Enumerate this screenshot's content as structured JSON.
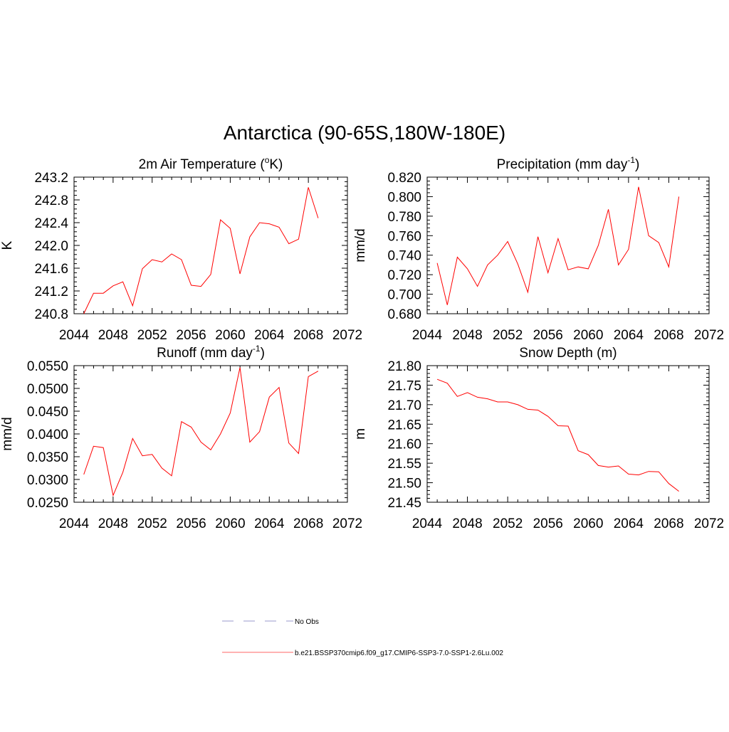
{
  "figure": {
    "title": "Antarctica (90-65S,180W-180E)"
  },
  "legend": {
    "entries": [
      {
        "label": "No Obs",
        "color": "#9999cc",
        "style": "dashed"
      },
      {
        "label": "b.e21.BSSP370cmip6.f09_g17.CMIP6-SSP3-7.0-SSP1-2.6Lu.002",
        "color": "#ff6666",
        "style": "solid"
      }
    ]
  },
  "chart_data": [
    {
      "id": "temp",
      "type": "line",
      "title": "2m Air Temperature (",
      "title_sup": "o",
      "title_after": "K)",
      "ylabel": "K",
      "xlim": [
        2044,
        2072
      ],
      "ylim": [
        240.8,
        243.2
      ],
      "xticks": [
        "2044",
        "2048",
        "2052",
        "2056",
        "2060",
        "2064",
        "2068",
        "2072"
      ],
      "yticks": [
        "240.8",
        "241.2",
        "241.6",
        "242.0",
        "242.4",
        "242.8",
        "243.2"
      ],
      "series": [
        {
          "color": "#ff0000",
          "x": [
            2045,
            2046,
            2047,
            2048,
            2049,
            2050,
            2051,
            2052,
            2053,
            2054,
            2055,
            2056,
            2057,
            2058,
            2059,
            2060,
            2061,
            2062,
            2063,
            2064,
            2065,
            2066,
            2067,
            2068,
            2069
          ],
          "values": [
            240.8,
            241.16,
            241.16,
            241.29,
            241.36,
            240.94,
            241.59,
            241.75,
            241.71,
            241.85,
            241.75,
            241.3,
            241.28,
            241.49,
            242.45,
            242.3,
            241.5,
            242.15,
            242.4,
            242.38,
            242.32,
            242.03,
            242.11,
            243.02,
            242.48
          ]
        }
      ]
    },
    {
      "id": "precip",
      "type": "line",
      "title": "Precipitation (mm day",
      "title_sup": "-1",
      "title_after": ")",
      "ylabel": "mm/d",
      "xlim": [
        2044,
        2072
      ],
      "ylim": [
        0.68,
        0.82
      ],
      "xticks": [
        "2044",
        "2048",
        "2052",
        "2056",
        "2060",
        "2064",
        "2068",
        "2072"
      ],
      "yticks": [
        "0.680",
        "0.700",
        "0.720",
        "0.740",
        "0.760",
        "0.780",
        "0.800",
        "0.820"
      ],
      "series": [
        {
          "color": "#ff0000",
          "x": [
            2045,
            2046,
            2047,
            2048,
            2049,
            2050,
            2051,
            2052,
            2053,
            2054,
            2055,
            2056,
            2057,
            2058,
            2059,
            2060,
            2061,
            2062,
            2063,
            2064,
            2065,
            2066,
            2067,
            2068,
            2069
          ],
          "values": [
            0.732,
            0.689,
            0.738,
            0.726,
            0.708,
            0.73,
            0.74,
            0.754,
            0.731,
            0.702,
            0.759,
            0.722,
            0.757,
            0.725,
            0.728,
            0.726,
            0.75,
            0.787,
            0.73,
            0.746,
            0.81,
            0.76,
            0.753,
            0.728,
            0.8
          ]
        }
      ]
    },
    {
      "id": "runoff",
      "type": "line",
      "title": "Runoff (mm day",
      "title_sup": "-1",
      "title_after": ")",
      "ylabel": "mm/d",
      "xlim": [
        2044,
        2072
      ],
      "ylim": [
        0.025,
        0.055
      ],
      "xticks": [
        "2044",
        "2048",
        "2052",
        "2056",
        "2060",
        "2064",
        "2068",
        "2072"
      ],
      "yticks": [
        "0.0250",
        "0.0300",
        "0.0350",
        "0.0400",
        "0.0450",
        "0.0500",
        "0.0550"
      ],
      "series": [
        {
          "color": "#ff0000",
          "x": [
            2045,
            2046,
            2047,
            2048,
            2049,
            2050,
            2051,
            2052,
            2053,
            2054,
            2055,
            2056,
            2057,
            2058,
            2059,
            2060,
            2061,
            2062,
            2063,
            2064,
            2065,
            2066,
            2067,
            2068,
            2069
          ],
          "values": [
            0.0311,
            0.0373,
            0.037,
            0.0265,
            0.0316,
            0.039,
            0.0352,
            0.0355,
            0.0325,
            0.0308,
            0.0427,
            0.0415,
            0.0382,
            0.0365,
            0.04,
            0.0446,
            0.0546,
            0.0382,
            0.0405,
            0.0481,
            0.0502,
            0.038,
            0.0357,
            0.0526,
            0.0538
          ]
        }
      ]
    },
    {
      "id": "snow",
      "type": "line",
      "title": "Snow Depth (m)",
      "title_sup": "",
      "title_after": "",
      "ylabel": "m",
      "xlim": [
        2044,
        2072
      ],
      "ylim": [
        21.45,
        21.8
      ],
      "xticks": [
        "2044",
        "2048",
        "2052",
        "2056",
        "2060",
        "2064",
        "2068",
        "2072"
      ],
      "yticks": [
        "21.45",
        "21.50",
        "21.55",
        "21.60",
        "21.65",
        "21.70",
        "21.75",
        "21.80"
      ],
      "series": [
        {
          "color": "#ff0000",
          "x": [
            2045,
            2046,
            2047,
            2048,
            2049,
            2050,
            2051,
            2052,
            2053,
            2054,
            2055,
            2056,
            2057,
            2058,
            2059,
            2060,
            2061,
            2062,
            2063,
            2064,
            2065,
            2066,
            2067,
            2068,
            2069
          ],
          "values": [
            21.765,
            21.755,
            21.721,
            21.731,
            21.719,
            21.715,
            21.707,
            21.707,
            21.7,
            21.688,
            21.686,
            21.67,
            21.646,
            21.645,
            21.582,
            21.572,
            21.544,
            21.54,
            21.543,
            21.522,
            21.52,
            21.529,
            21.528,
            21.498,
            21.478
          ]
        }
      ]
    }
  ]
}
